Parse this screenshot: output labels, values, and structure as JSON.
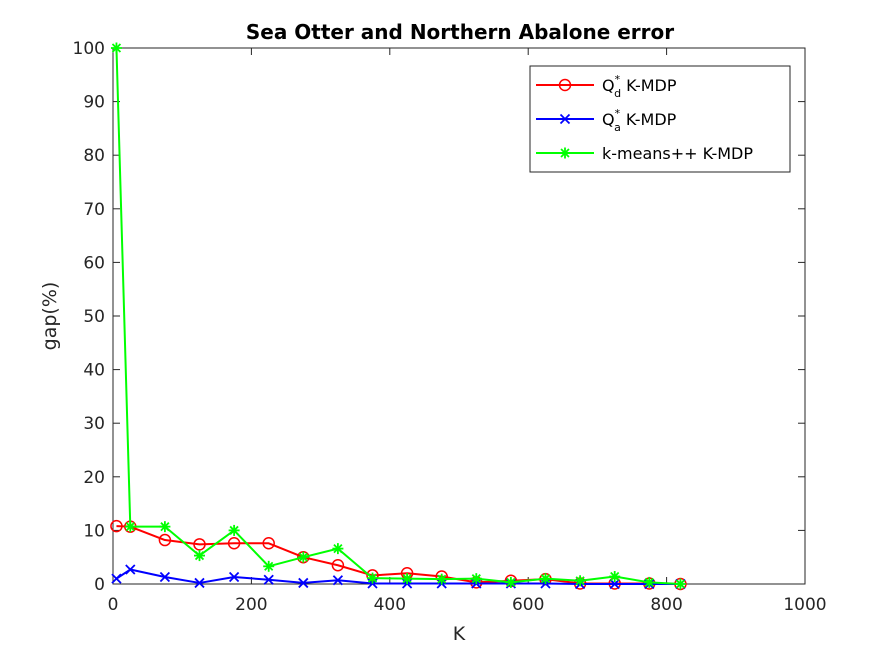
{
  "chart_data": {
    "type": "line",
    "title": "Sea Otter and Northern Abalone error",
    "xlabel": "K",
    "ylabel": "gap(%)",
    "xlim": [
      0,
      1000
    ],
    "ylim": [
      0,
      100
    ],
    "xticks": [
      0,
      200,
      400,
      600,
      800,
      1000
    ],
    "yticks": [
      0,
      10,
      20,
      30,
      40,
      50,
      60,
      70,
      80,
      90,
      100
    ],
    "grid": false,
    "legend_position": "top-right",
    "series": [
      {
        "name": "Q_d^* K-MDP",
        "legend_base": "Q",
        "legend_sub": "d",
        "legend_sup": "*",
        "legend_rest": " K-MDP",
        "color": "#ff0000",
        "marker": "circle",
        "x": [
          5,
          25,
          75,
          125,
          175,
          225,
          275,
          325,
          375,
          425,
          475,
          525,
          575,
          625,
          675,
          725,
          775,
          820
        ],
        "y": [
          10.8,
          10.7,
          8.2,
          7.4,
          7.6,
          7.6,
          5.0,
          3.5,
          1.6,
          2.0,
          1.4,
          0.3,
          0.6,
          0.9,
          0.1,
          0.1,
          0.1,
          0.0
        ]
      },
      {
        "name": "Q_a^* K-MDP",
        "legend_base": "Q",
        "legend_sub": "a",
        "legend_sup": "*",
        "legend_rest": " K-MDP",
        "color": "#0000ff",
        "marker": "x",
        "x": [
          5,
          25,
          75,
          125,
          175,
          225,
          275,
          325,
          375,
          425,
          475,
          525,
          575,
          625,
          675,
          725,
          775,
          820
        ],
        "y": [
          1.0,
          2.7,
          1.3,
          0.2,
          1.3,
          0.8,
          0.2,
          0.7,
          0.1,
          0.1,
          0.1,
          0.1,
          0.1,
          0.1,
          0.0,
          0.0,
          0.0,
          0.0
        ]
      },
      {
        "name": "k-means++ K-MDP",
        "legend_base": "k-means++ K-MDP",
        "legend_sub": "",
        "legend_sup": "",
        "legend_rest": "",
        "color": "#00ff00",
        "marker": "asterisk",
        "x": [
          5,
          25,
          75,
          125,
          175,
          225,
          275,
          325,
          375,
          425,
          475,
          525,
          575,
          625,
          675,
          725,
          775,
          820
        ],
        "y": [
          100.0,
          10.7,
          10.7,
          5.3,
          10.0,
          3.3,
          5.0,
          6.6,
          1.1,
          1.0,
          0.9,
          1.0,
          0.3,
          1.0,
          0.6,
          1.4,
          0.3,
          0.0
        ]
      }
    ]
  }
}
